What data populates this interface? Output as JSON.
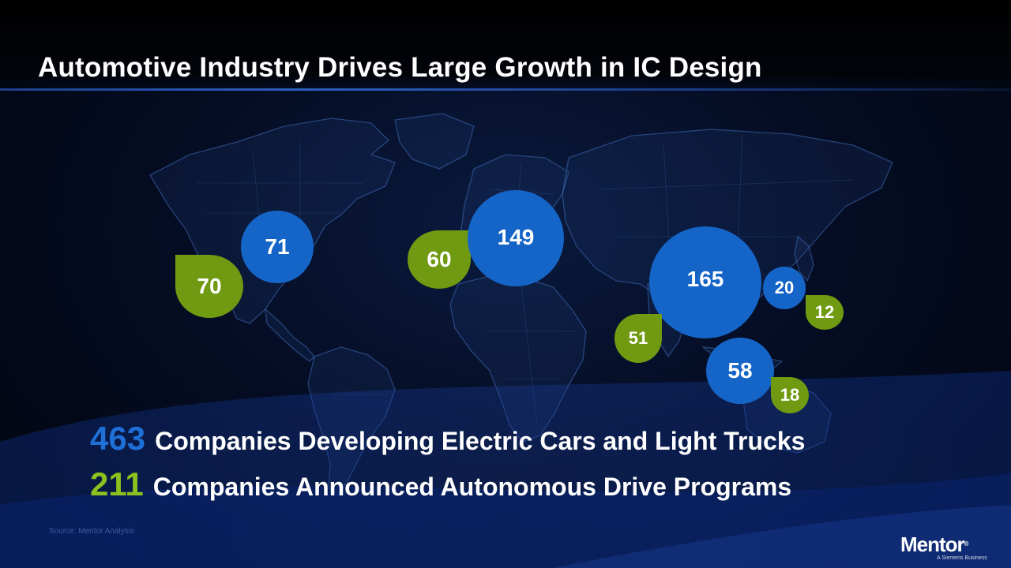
{
  "title": "Automotive Industry Drives Large Growth in IC Design",
  "regions": {
    "north_america": {
      "electric": "71",
      "autonomous": "70"
    },
    "europe": {
      "electric": "149",
      "autonomous": "60"
    },
    "china": {
      "electric": "165",
      "autonomous": "51"
    },
    "japan_korea": {
      "electric": "20",
      "autonomous": "12"
    },
    "southeast_asia": {
      "electric": "58",
      "autonomous": "18"
    }
  },
  "stats": [
    {
      "value": "463",
      "text": "Companies Developing Electric Cars and Light Trucks",
      "color": "#1e6fd6"
    },
    {
      "value": "211",
      "text": "Companies Announced Autonomous Drive Programs",
      "color": "#8cc21e"
    }
  ],
  "source": "Source: Mentor Analysis",
  "logo": {
    "name": "Mentor",
    "tagline": "A Siemens Business"
  },
  "colors": {
    "electric": "#1565c8",
    "autonomous": "#6f9a12",
    "background": "#050d24"
  }
}
